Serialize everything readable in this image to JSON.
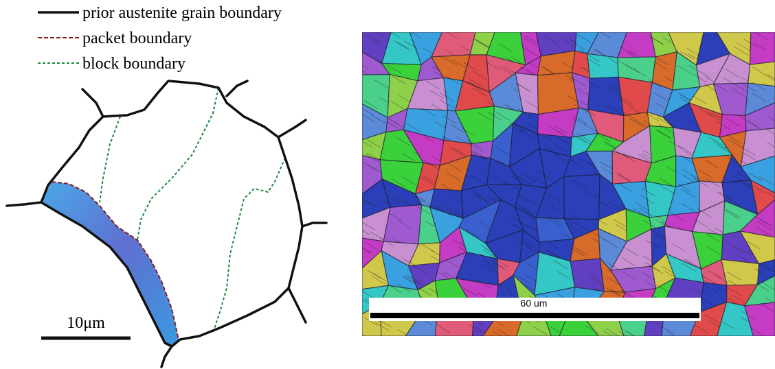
{
  "legend": {
    "items": [
      {
        "label": "prior austenite grain boundary"
      },
      {
        "label": "packet boundary"
      },
      {
        "label": "block boundary"
      }
    ]
  },
  "schematic": {
    "scale_label": "10μm"
  },
  "micrograph": {
    "scale_label": "60 um"
  }
}
